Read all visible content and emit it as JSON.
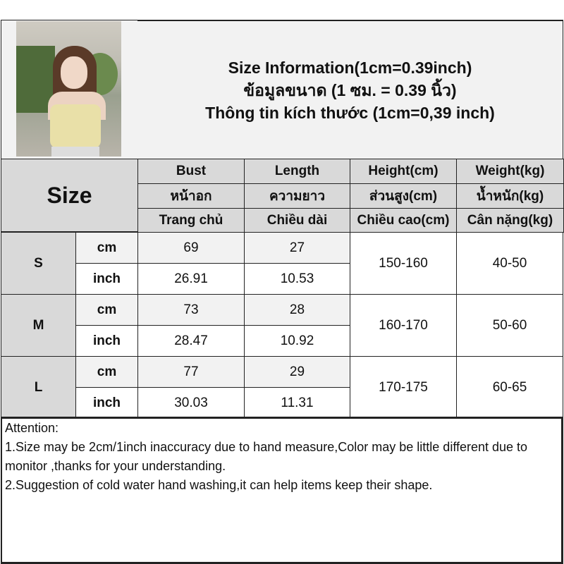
{
  "title": {
    "line_en": "Size Information(1cm=0.39inch)",
    "line_th": "ข้อมูลขนาด (1 ซม. = 0.39 นิ้ว)",
    "line_vi": "Thông tin kích thước (1cm=0,39 inch)"
  },
  "header": {
    "size_label": "Size",
    "columns": [
      {
        "en": "Bust",
        "th": "หน้าอก",
        "vi": "Trang chủ"
      },
      {
        "en": "Length",
        "th": "ความยาว",
        "vi": "Chiều dài"
      },
      {
        "en": "Height(cm)",
        "th": "ส่วนสูง(cm)",
        "vi": "Chiều cao(cm)"
      },
      {
        "en": "Weight(kg)",
        "th": "น้ำหนัก(kg)",
        "vi": "Cân nặng(kg)"
      }
    ]
  },
  "rows": [
    {
      "size": "S",
      "cm_label": "cm",
      "inch_label": "inch",
      "bust_cm": "69",
      "length_cm": "27",
      "bust_inch": "26.91",
      "length_inch": "10.53",
      "height": "150-160",
      "weight": "40-50"
    },
    {
      "size": "M",
      "cm_label": "cm",
      "inch_label": "inch",
      "bust_cm": "73",
      "length_cm": "28",
      "bust_inch": "28.47",
      "length_inch": "10.92",
      "height": "160-170",
      "weight": "50-60"
    },
    {
      "size": "L",
      "cm_label": "cm",
      "inch_label": "inch",
      "bust_cm": "77",
      "length_cm": "29",
      "bust_inch": "30.03",
      "length_inch": "11.31",
      "height": "170-175",
      "weight": "60-65"
    }
  ],
  "attention": {
    "heading": "Attention:",
    "note1": "1.Size may be 2cm/1inch inaccuracy due to hand measure,Color may be little different due to monitor ,thanks for your understanding.",
    "note2": "2.Suggestion of cold water hand washing,it can help items keep their shape."
  },
  "colors": {
    "header_bg": "#d9d9d9",
    "light_row_bg": "#f2f2f2",
    "border": "#222222"
  }
}
